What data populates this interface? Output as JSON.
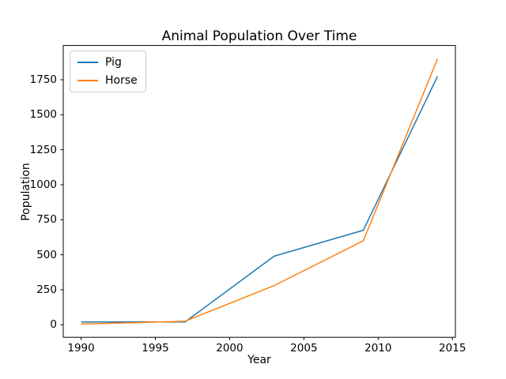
{
  "chart_data": {
    "type": "line",
    "title": "Animal Population Over Time",
    "xlabel": "Year",
    "ylabel": "Population",
    "x": [
      1990,
      1997,
      2003,
      2009,
      2014
    ],
    "series": [
      {
        "name": "Pig",
        "color": "#1f77b4",
        "values": [
          20,
          20,
          490,
          675,
          1775
        ]
      },
      {
        "name": "Horse",
        "color": "#ff7f0e",
        "values": [
          5,
          25,
          280,
          600,
          1900
        ]
      }
    ],
    "xticks": [
      1990,
      1995,
      2000,
      2005,
      2010,
      2015
    ],
    "yticks": [
      0,
      250,
      500,
      750,
      1000,
      1250,
      1500,
      1750
    ],
    "xlim": [
      1988.8,
      2015.2
    ],
    "ylim": [
      -89.75,
      1994.75
    ],
    "legend_position": "upper left",
    "grid": false,
    "spine_color": "#000000",
    "background_color": "#ffffff",
    "line_width": 1.5
  }
}
